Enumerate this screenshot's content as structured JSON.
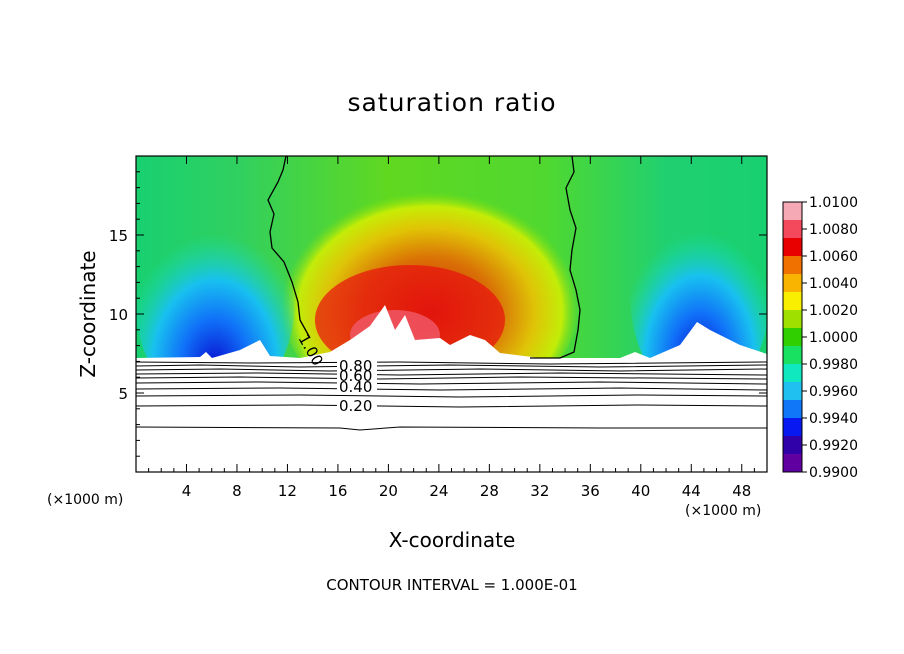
{
  "chart_data": {
    "type": "heatmap",
    "title": "saturation ratio",
    "xlabel": "X-coordinate",
    "ylabel": "Z-coordinate",
    "x_unit_label": "(×1000 m)",
    "footer": "CONTOUR INTERVAL = 1.000E-01",
    "xlim": [
      0,
      50
    ],
    "ylim": [
      0,
      20
    ],
    "x_ticks": [
      4,
      8,
      12,
      16,
      20,
      24,
      28,
      32,
      36,
      40,
      44,
      48
    ],
    "y_ticks": [
      5,
      10,
      15
    ],
    "colorbar": {
      "min": 0.99,
      "max": 1.01,
      "labels": [
        "1.0100",
        "1.0080",
        "1.0060",
        "1.0040",
        "1.0020",
        "1.0000",
        "0.9980",
        "0.9960",
        "0.9940",
        "0.9920",
        "0.9900"
      ],
      "colors": [
        "#f4a9b4",
        "#f4485c",
        "#e80000",
        "#f07000",
        "#f8b400",
        "#f8f000",
        "#a0e000",
        "#30d000",
        "#18e060",
        "#10e8c0",
        "#20c0f0",
        "#1078f8",
        "#0818f0",
        "#3000a8",
        "#6000a0"
      ]
    },
    "contour_lines": [
      {
        "label": "1.00",
        "level": 1.0
      },
      {
        "label": "0.80",
        "level": 0.8
      },
      {
        "label": "0.60",
        "level": 0.6
      },
      {
        "label": "0.40",
        "level": 0.4
      },
      {
        "label": "0.20",
        "level": 0.2
      }
    ]
  }
}
